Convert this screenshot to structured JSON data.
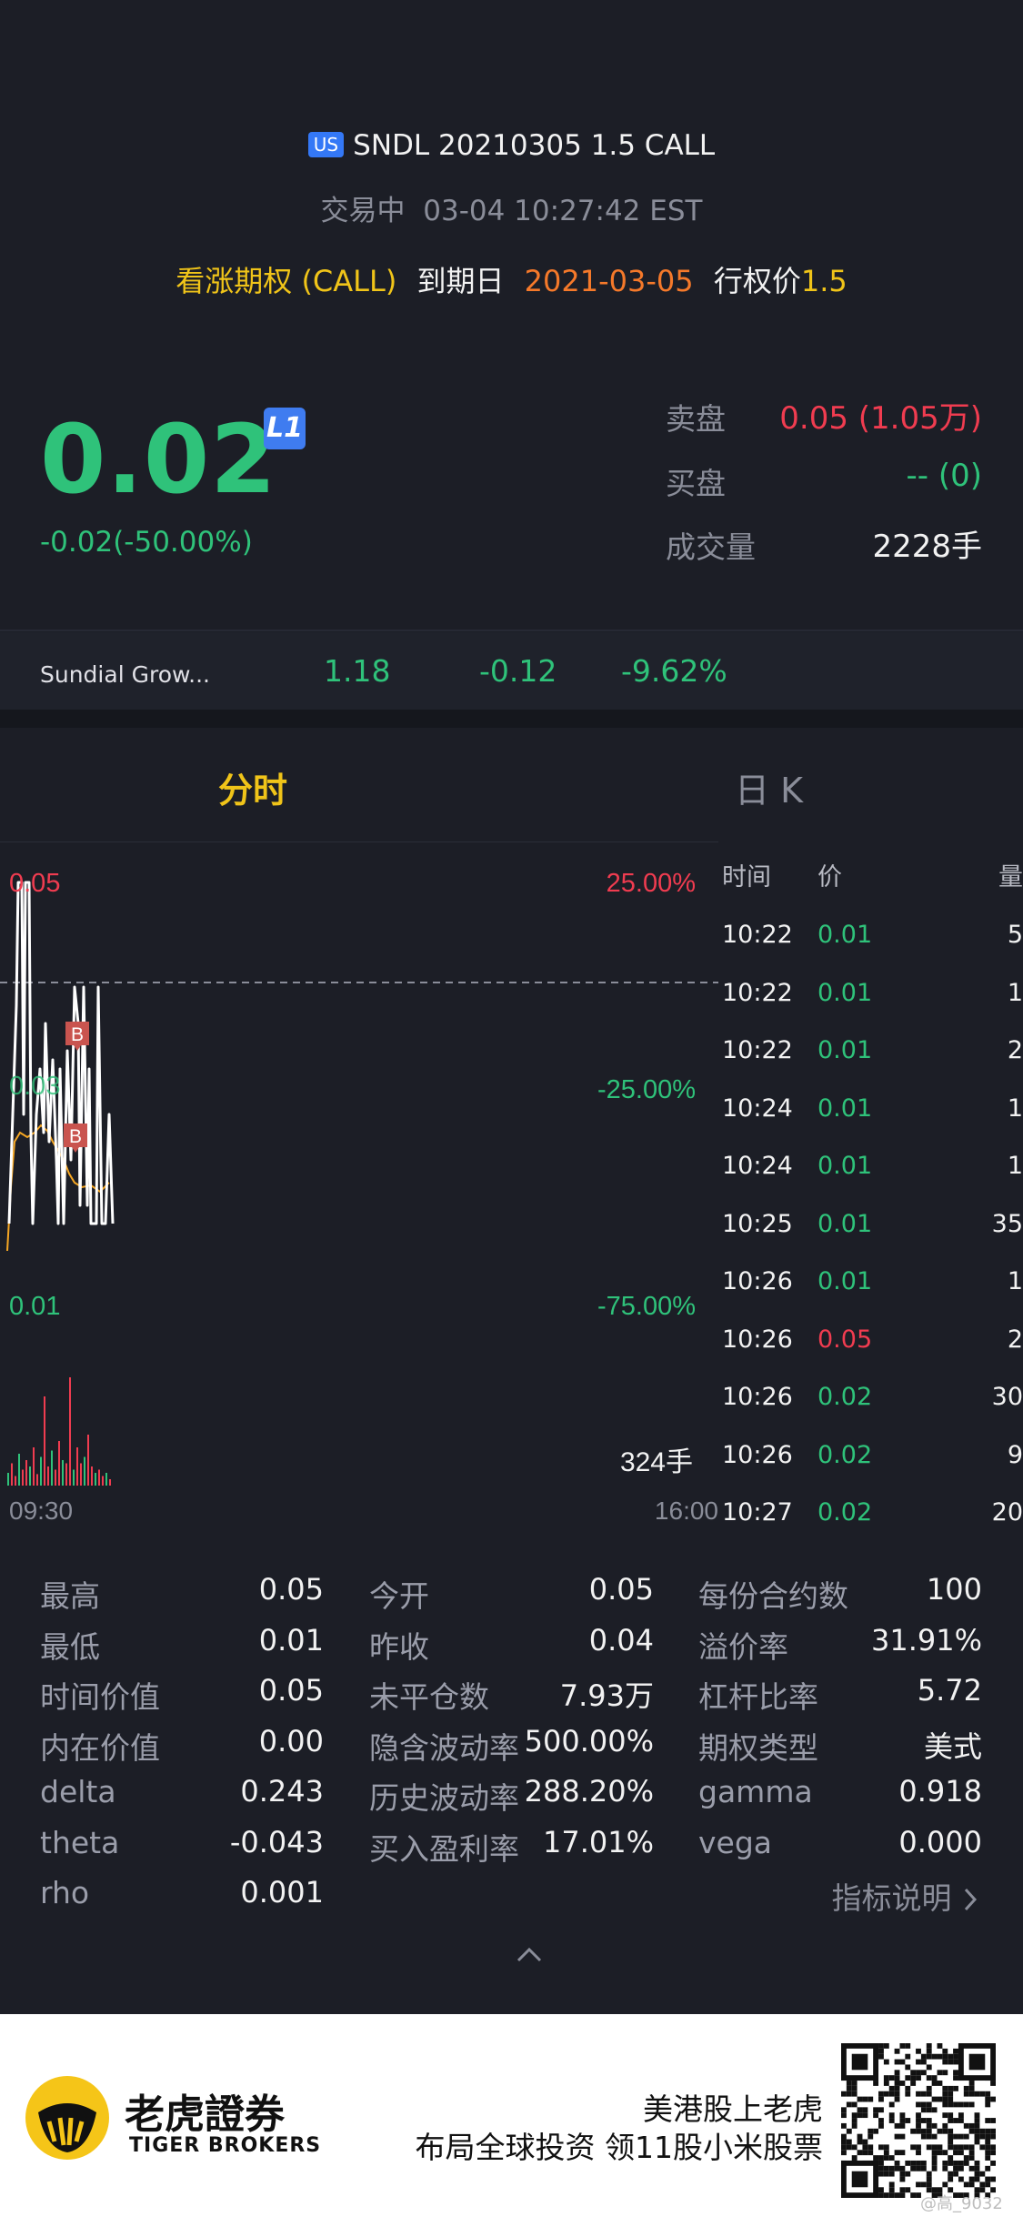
{
  "header": {
    "market_badge": "US",
    "title": "SNDL 20210305 1.5 CALL",
    "status": "交易中",
    "datetime": "03-04 10:27:42 EST",
    "option_type": "看涨期权 (CALL)",
    "expiry_label": "到期日",
    "expiry_value": "2021-03-05",
    "strike_label": "行权价",
    "strike_value": "1.5"
  },
  "quote": {
    "price": "0.02",
    "level_badge": "L1",
    "change": "-0.02(-50.00%)",
    "ask_label": "卖盘",
    "ask_value": "0.05 (1.05万)",
    "bid_label": "买盘",
    "bid_value": "-- (0)",
    "volume_label": "成交量",
    "volume_value": "2228手"
  },
  "underlying": {
    "name": "Sundial Grow...",
    "price": "1.18",
    "change": "-0.12",
    "change_pct": "-9.62%"
  },
  "tabs": {
    "intraday": "分时",
    "daily_k": "日 K"
  },
  "chart": {
    "price_high": "0.05",
    "price_mid": "0.03",
    "price_low": "0.01",
    "pct_high": "25.00%",
    "pct_mid": "-25.00%",
    "pct_low": "-75.00%",
    "volume_label": "324手",
    "time_start": "09:30",
    "time_end": "16:00",
    "marker_buy": "B"
  },
  "trades": {
    "headers": {
      "time": "时间",
      "price": "价",
      "volume": "量"
    },
    "rows": [
      {
        "time": "10:22",
        "price": "0.01",
        "volume": "5",
        "dir": "down"
      },
      {
        "time": "10:22",
        "price": "0.01",
        "volume": "1",
        "dir": "down"
      },
      {
        "time": "10:22",
        "price": "0.01",
        "volume": "2",
        "dir": "down"
      },
      {
        "time": "10:24",
        "price": "0.01",
        "volume": "1",
        "dir": "down"
      },
      {
        "time": "10:24",
        "price": "0.01",
        "volume": "1",
        "dir": "down"
      },
      {
        "time": "10:25",
        "price": "0.01",
        "volume": "35",
        "dir": "down"
      },
      {
        "time": "10:26",
        "price": "0.01",
        "volume": "1",
        "dir": "down"
      },
      {
        "time": "10:26",
        "price": "0.05",
        "volume": "2",
        "dir": "up"
      },
      {
        "time": "10:26",
        "price": "0.02",
        "volume": "30",
        "dir": "down"
      },
      {
        "time": "10:26",
        "price": "0.02",
        "volume": "9",
        "dir": "down"
      },
      {
        "time": "10:27",
        "price": "0.02",
        "volume": "20",
        "dir": "down"
      }
    ]
  },
  "stats": {
    "col1": [
      {
        "label": "最高",
        "value": "0.05"
      },
      {
        "label": "最低",
        "value": "0.01"
      },
      {
        "label": "时间价值",
        "value": "0.05"
      },
      {
        "label": "内在价值",
        "value": "0.00"
      },
      {
        "label": "delta",
        "value": "0.243"
      },
      {
        "label": "theta",
        "value": "-0.043"
      },
      {
        "label": "rho",
        "value": "0.001"
      }
    ],
    "col2": [
      {
        "label": "今开",
        "value": "0.05"
      },
      {
        "label": "昨收",
        "value": "0.04"
      },
      {
        "label": "未平仓数",
        "value": "7.93万"
      },
      {
        "label": "隐含波动率",
        "value": "500.00%"
      },
      {
        "label": "历史波动率",
        "value": "288.20%"
      },
      {
        "label": "买入盈利率",
        "value": "17.01%"
      }
    ],
    "col3": [
      {
        "label": "每份合约数",
        "value": "100"
      },
      {
        "label": "溢价率",
        "value": "31.91%"
      },
      {
        "label": "杠杆比率",
        "value": "5.72"
      },
      {
        "label": "期权类型",
        "value": "美式"
      },
      {
        "label": "gamma",
        "value": "0.918"
      },
      {
        "label": "vega",
        "value": "0.000"
      }
    ],
    "link": "指标说明"
  },
  "footer": {
    "brand_cn": "老虎證券",
    "brand_en": "TIGER BROKERS",
    "promo_line1": "美港股上老虎",
    "promo_line2": "布局全球投资 领11股小米股票",
    "watermark": "@高_9032"
  },
  "colors": {
    "green": "#2fc27a",
    "red": "#f03c50",
    "yellow": "#f0c419",
    "orange": "#f5792a",
    "background": "#1c1e26"
  }
}
